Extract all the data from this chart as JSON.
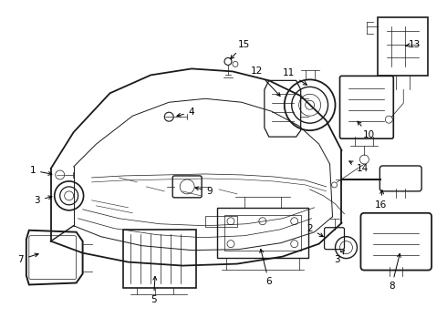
{
  "background_color": "#ffffff",
  "line_color": "#1a1a1a",
  "fig_width": 4.9,
  "fig_height": 3.6,
  "dpi": 100,
  "label_fs": 7.5,
  "lw_main": 1.0,
  "lw_thin": 0.5
}
